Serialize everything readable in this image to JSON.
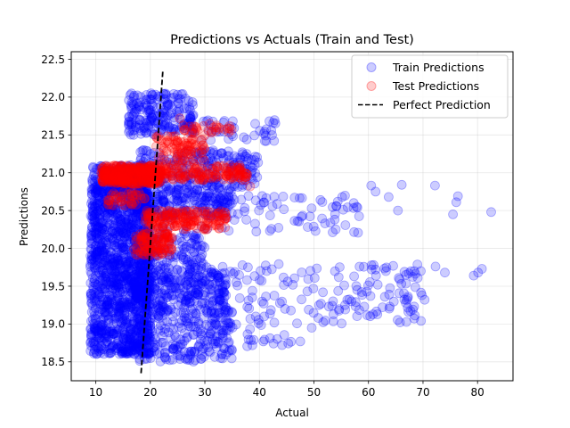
{
  "chart_data": {
    "type": "scatter",
    "title": "Predictions vs Actuals (Train and Test)",
    "xlabel": "Actual",
    "ylabel": "Predictions",
    "xlim": [
      5.5,
      86.5
    ],
    "ylim": [
      18.25,
      22.6
    ],
    "xticks": [
      10,
      20,
      30,
      40,
      50,
      60,
      70,
      80
    ],
    "yticks": [
      18.5,
      19.0,
      19.5,
      20.0,
      20.5,
      21.0,
      21.5,
      22.0,
      22.5
    ],
    "xtick_labels": [
      "10",
      "20",
      "30",
      "40",
      "50",
      "60",
      "70",
      "80"
    ],
    "ytick_labels": [
      "18.5",
      "19.0",
      "19.5",
      "20.0",
      "20.5",
      "21.0",
      "21.5",
      "22.0",
      "22.5"
    ],
    "grid": true,
    "legend_position": "upper right",
    "series": [
      {
        "name": "Train Predictions",
        "color": "#0000ff",
        "marker": "circle",
        "alpha": 0.2,
        "clusters": [
          {
            "x_range": [
              9,
              20
            ],
            "y_range": [
              18.6,
              21.1
            ],
            "count": 1500
          },
          {
            "x_range": [
              17,
              35
            ],
            "y_range": [
              18.5,
              19.3
            ],
            "count": 300
          },
          {
            "x_range": [
              17,
              34
            ],
            "y_range": [
              19.3,
              19.7
            ],
            "count": 240
          },
          {
            "x_range": [
              17,
              30
            ],
            "y_range": [
              19.7,
              20.3
            ],
            "count": 160
          },
          {
            "x_range": [
              17,
              35
            ],
            "y_range": [
              20.4,
              20.8
            ],
            "count": 220
          },
          {
            "x_range": [
              18,
              40
            ],
            "y_range": [
              20.8,
              21.3
            ],
            "count": 220
          },
          {
            "x_range": [
              16,
              28
            ],
            "y_range": [
              21.5,
              22.05
            ],
            "count": 200
          },
          {
            "x_range": [
              28,
              44
            ],
            "y_range": [
              21.4,
              21.7
            ],
            "count": 40
          },
          {
            "x_range": [
              30,
              70
            ],
            "y_range": [
              19.0,
              19.8
            ],
            "count": 160
          },
          {
            "x_range": [
              30,
              60
            ],
            "y_range": [
              20.2,
              20.7
            ],
            "count": 70
          },
          {
            "x_range": [
              30,
              46
            ],
            "y_range": [
              18.7,
              19.0
            ],
            "count": 30
          }
        ],
        "points": [
          [
            60.5,
            20.83
          ],
          [
            61.3,
            20.75
          ],
          [
            63.7,
            20.68
          ],
          [
            65.4,
            20.5
          ],
          [
            66.1,
            20.84
          ],
          [
            72.2,
            20.83
          ],
          [
            76.4,
            20.69
          ],
          [
            76.1,
            20.61
          ],
          [
            75.5,
            20.45
          ],
          [
            82.5,
            20.48
          ],
          [
            57.3,
            20.6
          ],
          [
            57.8,
            20.55
          ],
          [
            53.8,
            20.38
          ],
          [
            54.0,
            20.25
          ],
          [
            51.2,
            20.64
          ],
          [
            54.1,
            20.56
          ],
          [
            47.0,
            20.36
          ],
          [
            61.3,
            19.72
          ],
          [
            63.2,
            19.7
          ],
          [
            66.6,
            19.69
          ],
          [
            67.4,
            19.67
          ],
          [
            68.4,
            19.7
          ],
          [
            69.6,
            19.7
          ],
          [
            72.3,
            19.76
          ],
          [
            74.0,
            19.68
          ],
          [
            79.3,
            19.64
          ],
          [
            80.1,
            19.68
          ],
          [
            80.8,
            19.73
          ],
          [
            67.2,
            19.34
          ],
          [
            69.8,
            19.38
          ],
          [
            70.3,
            19.32
          ],
          [
            63.9,
            19.23
          ],
          [
            61.7,
            19.52
          ],
          [
            56.9,
            19.3
          ],
          [
            55.7,
            19.25
          ],
          [
            50.8,
            19.08
          ],
          [
            49.6,
            18.95
          ],
          [
            47.5,
            18.77
          ],
          [
            44.7,
            19.2
          ],
          [
            53.5,
            19.3
          ]
        ]
      },
      {
        "name": "Test Predictions",
        "color": "#ff0000",
        "marker": "circle",
        "alpha": 0.2,
        "clusters": [
          {
            "x_range": [
              11,
              22
            ],
            "y_range": [
              20.85,
              21.1
            ],
            "count": 360
          },
          {
            "x_range": [
              19,
              38
            ],
            "y_range": [
              20.9,
              21.1
            ],
            "count": 160
          },
          {
            "x_range": [
              21,
              30
            ],
            "y_range": [
              21.1,
              21.5
            ],
            "count": 90
          },
          {
            "x_range": [
              26,
              35
            ],
            "y_range": [
              21.5,
              21.65
            ],
            "count": 30
          },
          {
            "x_range": [
              17,
              24
            ],
            "y_range": [
              19.9,
              20.2
            ],
            "count": 110
          },
          {
            "x_range": [
              19,
              34
            ],
            "y_range": [
              20.25,
              20.5
            ],
            "count": 170
          },
          {
            "x_range": [
              12,
              19
            ],
            "y_range": [
              20.55,
              20.75
            ],
            "count": 40
          }
        ],
        "points": [
          [
            38.3,
            20.82
          ],
          [
            25.4,
            21.72
          ],
          [
            35.1,
            21.03
          ]
        ]
      },
      {
        "name": "Perfect Prediction",
        "type": "line",
        "style": "dashed",
        "color": "#000000",
        "points": [
          [
            18.3,
            18.35
          ],
          [
            22.3,
            22.35
          ]
        ]
      }
    ]
  }
}
